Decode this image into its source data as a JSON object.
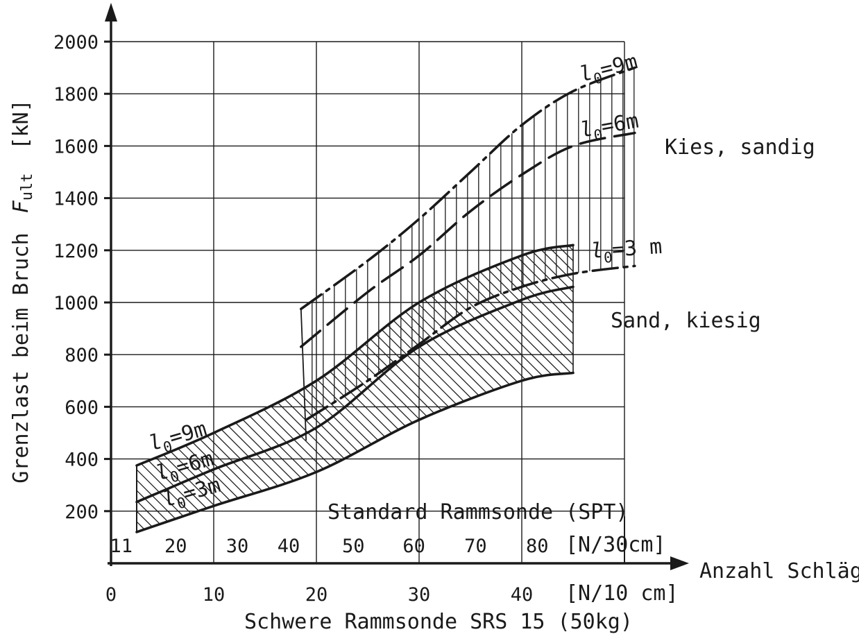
{
  "chart_data": {
    "type": "line",
    "ylabel_text": "Grenzlast beim Bruch",
    "ylabel_symbol": "F",
    "ylabel_subscript": "ult",
    "ylabel_unit": "[kN]",
    "xlabel_right": "Anzahl Schläge",
    "xlabel_bottom": "Schwere Rammsonde SRS 15 (50kg)",
    "spt_label": "Standard Rammsonde (SPT)",
    "srs_unit": "[N/10 cm]",
    "spt_unit": "[N/30cm]",
    "ylim": [
      0,
      2100
    ],
    "xlim": [
      0,
      55
    ],
    "y_ticks": [
      200,
      400,
      600,
      800,
      1000,
      1200,
      1400,
      1600,
      1800,
      2000
    ],
    "x_ticks": [
      0,
      10,
      20,
      30,
      40
    ],
    "spt_ticks": [
      {
        "label": "11",
        "x": 1
      },
      {
        "label": "20",
        "x": 6.3
      },
      {
        "label": "30",
        "x": 12.3
      },
      {
        "label": "40",
        "x": 17.3
      },
      {
        "label": "50",
        "x": 23.6
      },
      {
        "label": "60",
        "x": 29.5
      },
      {
        "label": "70",
        "x": 35.5
      },
      {
        "label": "80",
        "x": 41.5
      }
    ],
    "soil_labels": [
      "Kies, sandig",
      "Sand, kiesig"
    ],
    "series": [
      {
        "name": "l0 = 9m",
        "soil": "Sand, kiesig",
        "style": "solid",
        "x": [
          2.5,
          10,
          20,
          30,
          40,
          45
        ],
        "y": [
          375,
          500,
          700,
          1000,
          1180,
          1220
        ]
      },
      {
        "name": "l0 = 6m",
        "soil": "Sand, kiesig",
        "style": "solid",
        "x": [
          2.5,
          10,
          20,
          30,
          40,
          45
        ],
        "y": [
          235,
          360,
          520,
          830,
          1010,
          1060
        ]
      },
      {
        "name": "l0 = 3m",
        "soil": "Sand, kiesig",
        "style": "solid",
        "x": [
          2.5,
          10,
          20,
          30,
          40,
          45
        ],
        "y": [
          120,
          220,
          350,
          550,
          700,
          730
        ]
      },
      {
        "name": "l0 = 9m",
        "soil": "Kies, sandig",
        "style": "dash-dot",
        "x": [
          18.5,
          25,
          30,
          35,
          40,
          45,
          51
        ],
        "y": [
          975,
          1160,
          1320,
          1500,
          1680,
          1810,
          1900
        ]
      },
      {
        "name": "l0 = 6m",
        "soil": "Kies, sandig",
        "style": "dash",
        "x": [
          18.5,
          25,
          30,
          35,
          40,
          45,
          51
        ],
        "y": [
          830,
          1040,
          1180,
          1350,
          1490,
          1600,
          1650
        ]
      },
      {
        "name": "l0 = 3m",
        "soil": "Kies, sandig",
        "style": "dash-dot",
        "x": [
          19,
          25,
          30,
          35,
          40,
          45,
          51
        ],
        "y": [
          550,
          700,
          840,
          980,
          1060,
          1110,
          1140
        ]
      }
    ]
  },
  "annotations": {
    "l0_letter": "l",
    "l0_sub": "0",
    "lower_9m": "=9m",
    "lower_6m": "=6m",
    "lower_3m": "=3m",
    "upper_9m": "=9m",
    "upper_6m": "=6m",
    "upper_3m": "=3 m"
  }
}
